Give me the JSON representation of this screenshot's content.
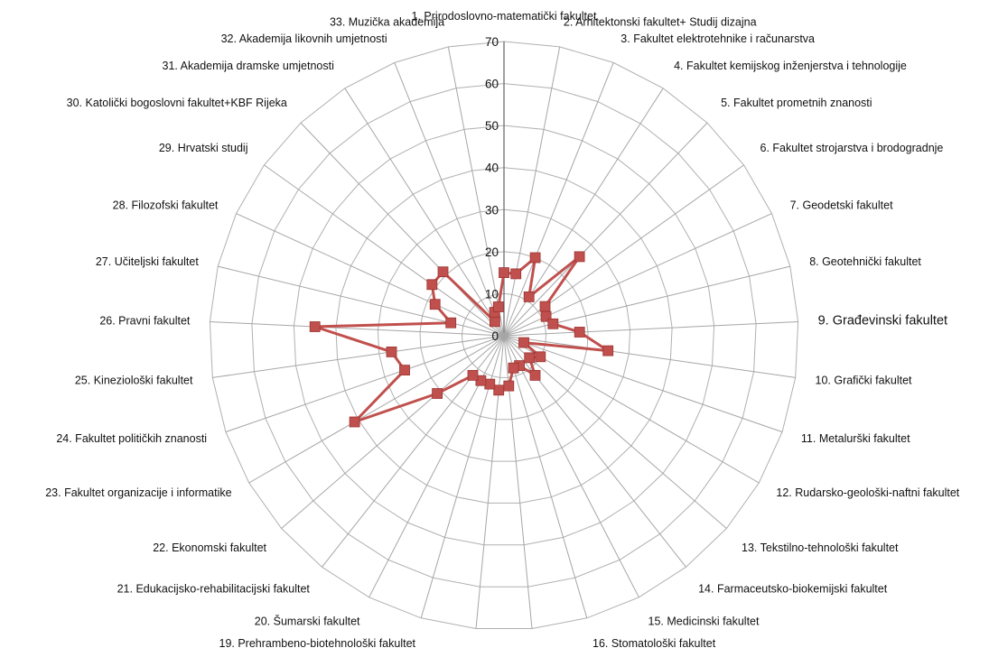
{
  "chart_data": {
    "type": "radar",
    "title": "",
    "rmin": 0,
    "rmax": 70,
    "tick_step": 10,
    "grid": true,
    "legend": "none",
    "emphasized_category_index": 8,
    "categories": [
      "1. Prirodoslovno-matematički fakultet",
      "2. Arhitektonski fakultet+ Studij dizajna",
      "3. Fakultet elektrotehnike i računarstva",
      "4. Fakultet kemijskog inženjerstva i tehnologije",
      "5. Fakultet prometnih znanosti",
      "6. Fakultet strojarstva i brodogradnje",
      "7. Geodetski fakultet",
      "8. Geotehnički fakultet",
      "9. Građevinski fakultet",
      "10. Grafički fakultet",
      "11. Metalurški fakultet",
      "12. Rudarsko-geološki-naftni fakultet",
      "13. Tekstilno-tehnološki fakultet",
      "14. Farmaceutsko-biokemijski fakultet",
      "15. Medicinski fakultet",
      "16. Stomatološki fakultet",
      "17. Veterinarski fakultet",
      "18. Agronomski fakultet",
      "19. Prehrambeno-biotehnološki fakultet",
      "20. Šumarski fakultet",
      "21. Edukacijsko-rehabilitacijski fakultet",
      "22. Ekonomski fakultet",
      "23. Fakultet organizacije i informatike",
      "24. Fakultet političkih znanosti",
      "25. Kineziološki fakultet",
      "26. Pravni fakultet",
      "27. Učiteljski fakultet",
      "28. Filozofski fakultet",
      "29. Hrvatski studij",
      "30. Katolički bogoslovni fakultet+KBF Rijeka",
      "31. Akademija dramske umjetnosti",
      "32. Akademija likovnih umjetnosti",
      "33. Muzička akademija"
    ],
    "series": [
      {
        "name": "",
        "color": "#c0504d",
        "values": [
          15,
          15,
          20,
          11,
          26,
          12,
          11,
          12,
          18,
          25,
          5,
          10,
          8,
          12,
          8,
          8,
          12,
          13,
          12,
          12,
          12,
          21,
          41,
          25,
          27,
          45,
          13,
          18,
          21,
          21,
          4,
          6,
          7
        ]
      }
    ]
  }
}
